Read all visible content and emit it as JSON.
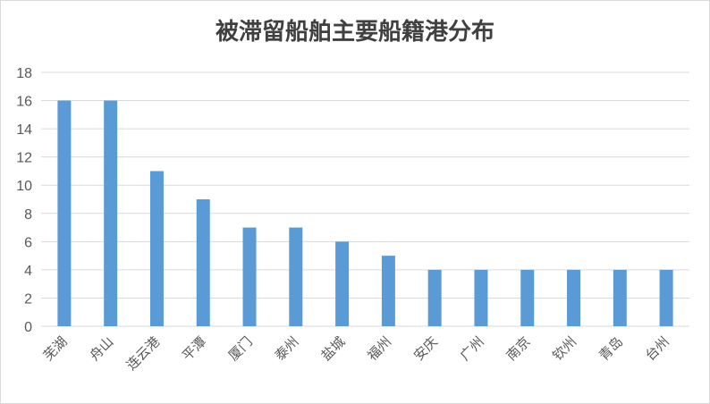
{
  "chart_data": {
    "type": "bar",
    "title": "被滞留船舶主要船籍港分布",
    "xlabel": "",
    "ylabel": "",
    "categories": [
      "芜湖",
      "舟山",
      "连云港",
      "平潭",
      "厦门",
      "泰州",
      "盐城",
      "福州",
      "安庆",
      "广州",
      "南京",
      "钦州",
      "青岛",
      "台州"
    ],
    "values": [
      16,
      16,
      11,
      9,
      7,
      7,
      6,
      5,
      4,
      4,
      4,
      4,
      4,
      4
    ],
    "ylim": [
      0,
      18
    ],
    "yticks": [
      0,
      2,
      4,
      6,
      8,
      10,
      12,
      14,
      16,
      18
    ],
    "grid": true,
    "legend": "none",
    "bar_color": "#5b9bd5",
    "grid_color": "#d9d9d9",
    "text_color": "#595959"
  }
}
